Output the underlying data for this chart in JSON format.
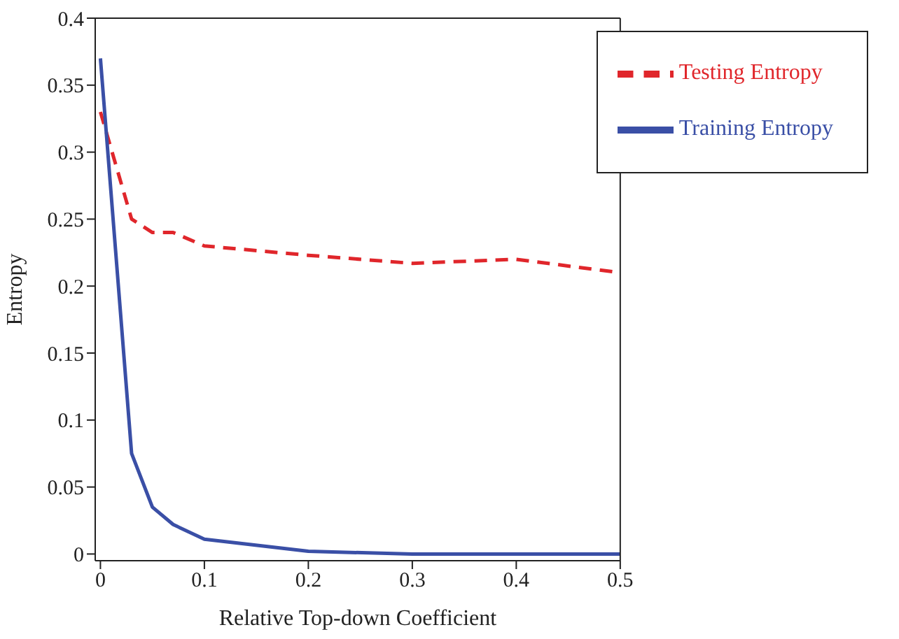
{
  "chart_data": {
    "type": "line",
    "xlabel": "Relative Top-down Coefficient",
    "ylabel": "Entropy",
    "x": [
      0,
      0.03,
      0.05,
      0.07,
      0.1,
      0.2,
      0.3,
      0.4,
      0.5
    ],
    "series": [
      {
        "name": "Testing Entropy",
        "color": "#e0262b",
        "line_style": "dashed",
        "values": [
          0.33,
          0.25,
          0.24,
          0.24,
          0.23,
          0.223,
          0.217,
          0.22,
          0.21
        ]
      },
      {
        "name": "Training Entropy",
        "color": "#3a4fa6",
        "line_style": "solid",
        "values": [
          0.37,
          0.075,
          0.035,
          0.022,
          0.011,
          0.002,
          0,
          0,
          0
        ]
      }
    ],
    "xlim": [
      -0.005,
      0.5
    ],
    "xticks": [
      0,
      0.1,
      0.2,
      0.3,
      0.4,
      0.5
    ],
    "ylim": [
      -0.005,
      0.4
    ],
    "yticks": [
      0,
      0.05,
      0.1,
      0.15,
      0.2,
      0.25,
      0.3,
      0.35,
      0.4
    ],
    "grid": false,
    "legend": "top right",
    "marker": "none"
  }
}
